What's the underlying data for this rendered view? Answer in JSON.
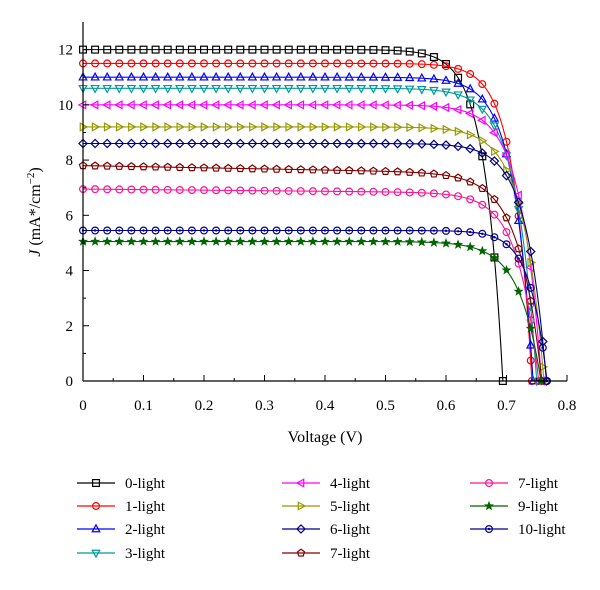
{
  "chart_data": {
    "type": "line",
    "title": "",
    "xlabel": "Voltage (V)",
    "ylabel_italic": "J",
    "ylabel_rest": " (mA*/cm",
    "ylabel_sup": "−2",
    "ylabel_close": ")",
    "xlim": [
      0,
      0.8
    ],
    "ylim": [
      0,
      13
    ],
    "xticks": [
      "0",
      "0.1",
      "0.2",
      "0.3",
      "0.4",
      "0.5",
      "0.6",
      "0.7",
      "0.8"
    ],
    "yticks": [
      "0",
      "2",
      "4",
      "6",
      "8",
      "10",
      "12"
    ],
    "grid": false,
    "legend_position": "bottom",
    "series": [
      {
        "name": "0-light",
        "color": "#000000",
        "marker": "square",
        "jsc": 12.0,
        "voc": 0.694,
        "a": 0.03,
        "tilt": 0.0
      },
      {
        "name": "1-light",
        "color": "#ff0000",
        "marker": "circle",
        "jsc": 11.5,
        "voc": 0.742,
        "a": 0.03,
        "tilt": 0.0
      },
      {
        "name": "2-light",
        "color": "#0000ff",
        "marker": "triangle-up",
        "jsc": 11.0,
        "voc": 0.744,
        "a": 0.032,
        "tilt": 0.0
      },
      {
        "name": "3-light",
        "color": "#009999",
        "marker": "triangle-down",
        "jsc": 10.6,
        "voc": 0.75,
        "a": 0.034,
        "tilt": 0.0
      },
      {
        "name": "4-light",
        "color": "#ff00ff",
        "marker": "triangle-left",
        "jsc": 10.0,
        "voc": 0.758,
        "a": 0.034,
        "tilt": 0.0
      },
      {
        "name": "5-light",
        "color": "#999900",
        "marker": "triangle-right",
        "jsc": 9.2,
        "voc": 0.762,
        "a": 0.035,
        "tilt": 0.0
      },
      {
        "name": "6-light",
        "color": "#000080",
        "marker": "diamond",
        "jsc": 8.6,
        "voc": 0.766,
        "a": 0.033,
        "tilt": 0.0
      },
      {
        "name": "7-light",
        "color": "#800000",
        "marker": "pentagon",
        "jsc": 7.8,
        "voc": 0.76,
        "a": 0.038,
        "tilt": 0.4
      },
      {
        "name": "7-light",
        "color": "#ff1493",
        "marker": "circle",
        "jsc": 6.95,
        "voc": 0.754,
        "a": 0.034,
        "tilt": 0.2
      },
      {
        "name": "9-light",
        "color": "#006400",
        "marker": "star",
        "jsc": 5.05,
        "voc": 0.757,
        "a": 0.036,
        "tilt": 0.0
      },
      {
        "name": "10-light",
        "color": "#00008b",
        "marker": "circle-dot",
        "jsc": 5.45,
        "voc": 0.767,
        "a": 0.028,
        "tilt": 0.0
      }
    ]
  }
}
